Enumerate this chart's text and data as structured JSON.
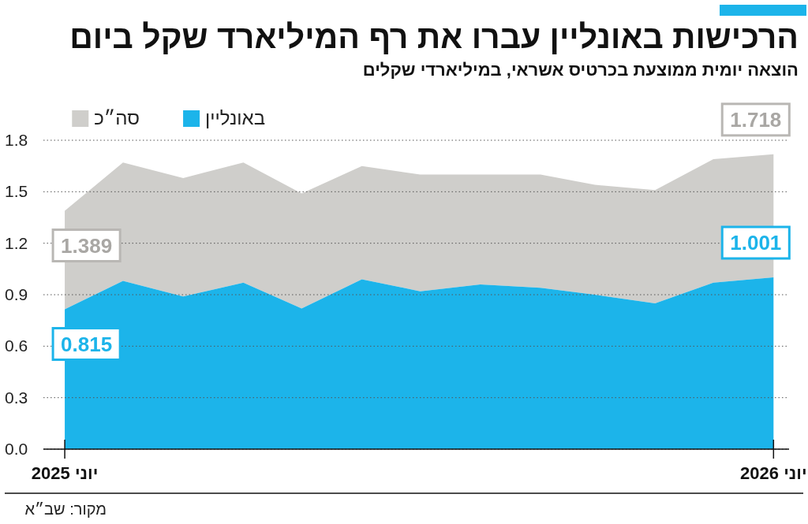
{
  "chart_data": {
    "type": "area",
    "title": "הרכישות באונליין עברו את רף המיליארד שקל ביום",
    "subtitle": "הוצאה יומית ממוצעת בכרטיס אשראי, במיליארדי שקלים",
    "x": [
      "2025-06",
      "2025-07",
      "2025-08",
      "2025-09",
      "2025-10",
      "2025-11",
      "2025-12",
      "2026-01",
      "2026-02",
      "2026-03",
      "2026-04",
      "2026-05",
      "2026-06"
    ],
    "series": [
      {
        "name": "באונליין",
        "color": "#1cb4ea",
        "values": [
          0.815,
          0.98,
          0.89,
          0.97,
          0.82,
          0.99,
          0.92,
          0.96,
          0.94,
          0.9,
          0.85,
          0.97,
          1.001
        ],
        "value_labels": [
          "0.815",
          null,
          null,
          null,
          null,
          null,
          null,
          null,
          null,
          null,
          null,
          null,
          "1.001"
        ]
      },
      {
        "name": "סה״כ",
        "color": "#cfcecb",
        "values": [
          1.389,
          1.67,
          1.58,
          1.67,
          1.49,
          1.65,
          1.6,
          1.6,
          1.6,
          1.54,
          1.51,
          1.69,
          1.718
        ],
        "value_labels": [
          "1.389",
          null,
          null,
          null,
          null,
          null,
          null,
          null,
          null,
          null,
          null,
          null,
          "1.718"
        ]
      }
    ],
    "xlim": [
      "2025-05-21",
      "2026-06-09"
    ],
    "xticks": [
      {
        "value": "2025-06",
        "label": "יוני 2025"
      },
      {
        "value": "2026-06",
        "label": "יוני 2026"
      }
    ],
    "ylim": [
      0,
      1.8
    ],
    "yticks": [
      {
        "value": 0,
        "label": "0.0"
      },
      0.3,
      0.6,
      0.9,
      1.2,
      1.5,
      1.8
    ],
    "grid": "y",
    "legend": "top left",
    "annotations": [
      "מקור: שב״א"
    ]
  }
}
